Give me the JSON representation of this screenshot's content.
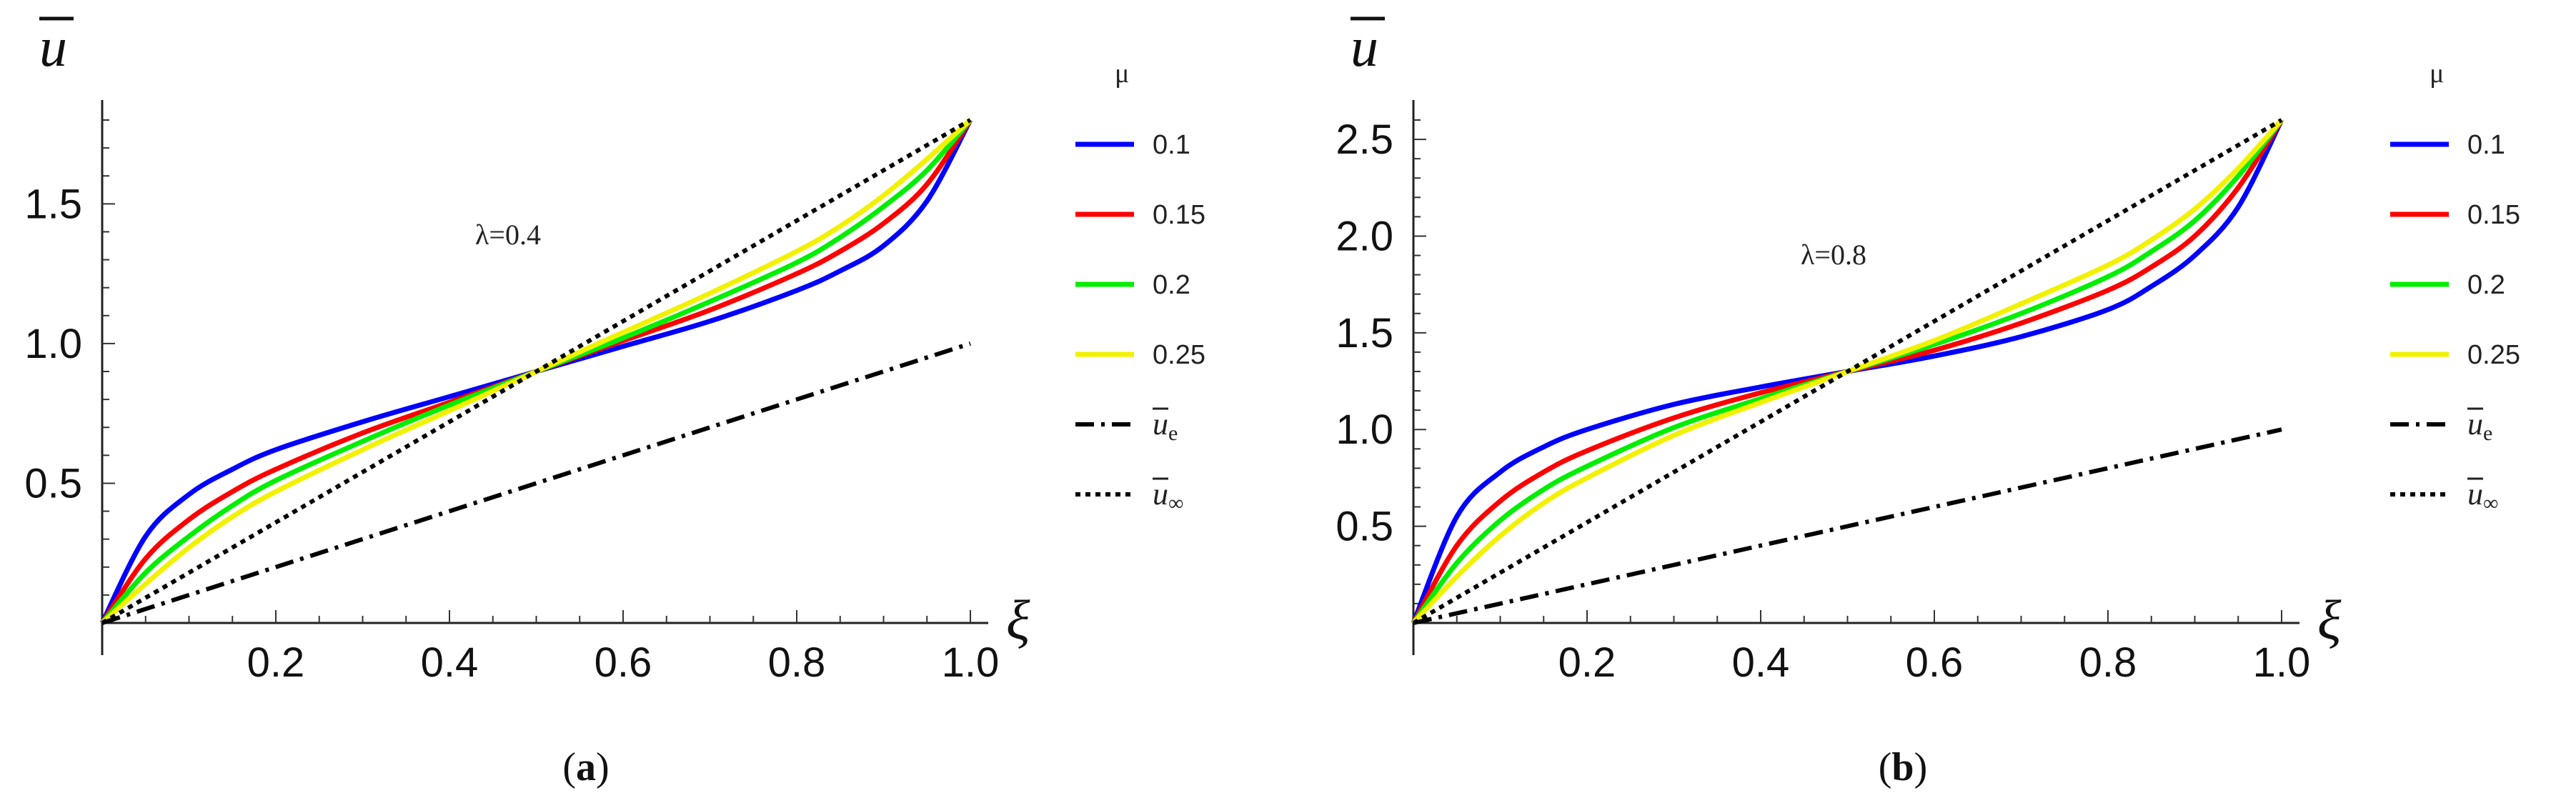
{
  "chart_data": [
    {
      "panel_label": "(a)",
      "panel_letter": "a",
      "type": "line",
      "xlabel": "ξ",
      "ylabel": "u",
      "xlim": [
        0,
        1.0
      ],
      "ylim": [
        0,
        1.8
      ],
      "x_ticks": [
        0.2,
        0.4,
        0.6,
        0.8,
        1.0
      ],
      "x_tick_labels": [
        "0.2",
        "0.4",
        "0.6",
        "0.8",
        "1.0"
      ],
      "y_ticks": [
        0.5,
        1.0,
        1.5
      ],
      "y_tick_labels": [
        "0.5",
        "1.0",
        "1.5"
      ],
      "annotation": "λ=0.4",
      "legend_title": "μ",
      "series": [
        {
          "name": "0.1",
          "color": "#0000ff",
          "style": "solid",
          "x": [
            0,
            0.05,
            0.1,
            0.15,
            0.2,
            0.3,
            0.4,
            0.5,
            0.6,
            0.7,
            0.8,
            0.85,
            0.9,
            0.95,
            1.0
          ],
          "values": [
            0,
            0.31,
            0.46,
            0.55,
            0.62,
            0.72,
            0.81,
            0.9,
            0.99,
            1.08,
            1.19,
            1.26,
            1.35,
            1.51,
            1.8
          ]
        },
        {
          "name": "0.15",
          "color": "#ff0000",
          "style": "solid",
          "x": [
            0,
            0.05,
            0.1,
            0.15,
            0.2,
            0.3,
            0.4,
            0.5,
            0.6,
            0.7,
            0.8,
            0.85,
            0.9,
            0.95,
            1.0
          ],
          "values": [
            0,
            0.23,
            0.37,
            0.47,
            0.55,
            0.68,
            0.79,
            0.9,
            1.01,
            1.12,
            1.25,
            1.33,
            1.43,
            1.57,
            1.8
          ]
        },
        {
          "name": "0.2",
          "color": "#00ee00",
          "style": "solid",
          "x": [
            0,
            0.05,
            0.1,
            0.15,
            0.2,
            0.3,
            0.4,
            0.5,
            0.6,
            0.7,
            0.8,
            0.85,
            0.9,
            0.95,
            1.0
          ],
          "values": [
            0,
            0.18,
            0.31,
            0.42,
            0.51,
            0.65,
            0.78,
            0.9,
            1.02,
            1.15,
            1.29,
            1.38,
            1.49,
            1.62,
            1.8
          ]
        },
        {
          "name": "0.25",
          "color": "#f2f200",
          "style": "solid",
          "x": [
            0,
            0.05,
            0.1,
            0.15,
            0.2,
            0.3,
            0.4,
            0.5,
            0.6,
            0.7,
            0.8,
            0.85,
            0.9,
            0.95,
            1.0
          ],
          "values": [
            0,
            0.14,
            0.27,
            0.38,
            0.47,
            0.62,
            0.76,
            0.9,
            1.04,
            1.18,
            1.33,
            1.42,
            1.53,
            1.66,
            1.8
          ]
        },
        {
          "name": "ue",
          "color": "#000000",
          "style": "dashdot",
          "x": [
            0,
            1.0
          ],
          "values": [
            0,
            1.0
          ]
        },
        {
          "name": "u∞",
          "color": "#000000",
          "style": "dotted",
          "x": [
            0,
            1.0
          ],
          "values": [
            0,
            1.8
          ]
        }
      ]
    },
    {
      "panel_label": "(b)",
      "panel_letter": "b",
      "type": "line",
      "xlabel": "ξ",
      "ylabel": "u",
      "xlim": [
        0,
        1.0
      ],
      "ylim": [
        0,
        2.6
      ],
      "x_ticks": [
        0.2,
        0.4,
        0.6,
        0.8,
        1.0
      ],
      "x_tick_labels": [
        "0.2",
        "0.4",
        "0.6",
        "0.8",
        "1.0"
      ],
      "y_ticks": [
        0.5,
        1.0,
        1.5,
        2.0,
        2.5
      ],
      "y_tick_labels": [
        "0.5",
        "1.0",
        "1.5",
        "2.0",
        "2.5"
      ],
      "annotation": "λ=0.8",
      "legend_title": "μ",
      "series": [
        {
          "name": "0.1",
          "color": "#0000ff",
          "style": "solid",
          "x": [
            0,
            0.05,
            0.1,
            0.15,
            0.2,
            0.3,
            0.4,
            0.5,
            0.6,
            0.7,
            0.8,
            0.85,
            0.9,
            0.95,
            1.0
          ],
          "values": [
            0,
            0.55,
            0.78,
            0.91,
            1.0,
            1.13,
            1.22,
            1.3,
            1.38,
            1.48,
            1.62,
            1.74,
            1.9,
            2.15,
            2.6
          ]
        },
        {
          "name": "0.15",
          "color": "#ff0000",
          "style": "solid",
          "x": [
            0,
            0.05,
            0.1,
            0.15,
            0.2,
            0.3,
            0.4,
            0.5,
            0.6,
            0.7,
            0.8,
            0.85,
            0.9,
            0.95,
            1.0
          ],
          "values": [
            0,
            0.4,
            0.63,
            0.78,
            0.89,
            1.06,
            1.19,
            1.3,
            1.41,
            1.55,
            1.72,
            1.84,
            2.0,
            2.25,
            2.6
          ]
        },
        {
          "name": "0.2",
          "color": "#00ee00",
          "style": "solid",
          "x": [
            0,
            0.05,
            0.1,
            0.15,
            0.2,
            0.3,
            0.4,
            0.5,
            0.6,
            0.7,
            0.8,
            0.85,
            0.9,
            0.95,
            1.0
          ],
          "values": [
            0,
            0.31,
            0.53,
            0.69,
            0.81,
            1.01,
            1.16,
            1.3,
            1.44,
            1.6,
            1.79,
            1.92,
            2.08,
            2.31,
            2.6
          ]
        },
        {
          "name": "0.25",
          "color": "#f2f200",
          "style": "solid",
          "x": [
            0,
            0.05,
            0.1,
            0.15,
            0.2,
            0.3,
            0.4,
            0.5,
            0.6,
            0.7,
            0.8,
            0.85,
            0.9,
            0.95,
            1.0
          ],
          "values": [
            0,
            0.24,
            0.45,
            0.62,
            0.75,
            0.97,
            1.14,
            1.3,
            1.46,
            1.65,
            1.85,
            1.98,
            2.14,
            2.35,
            2.6
          ]
        },
        {
          "name": "ue",
          "color": "#000000",
          "style": "dashdot",
          "x": [
            0,
            1.0
          ],
          "values": [
            0,
            1.0
          ]
        },
        {
          "name": "u∞",
          "color": "#000000",
          "style": "dotted",
          "x": [
            0,
            1.0
          ],
          "values": [
            0,
            2.6
          ]
        }
      ]
    }
  ]
}
